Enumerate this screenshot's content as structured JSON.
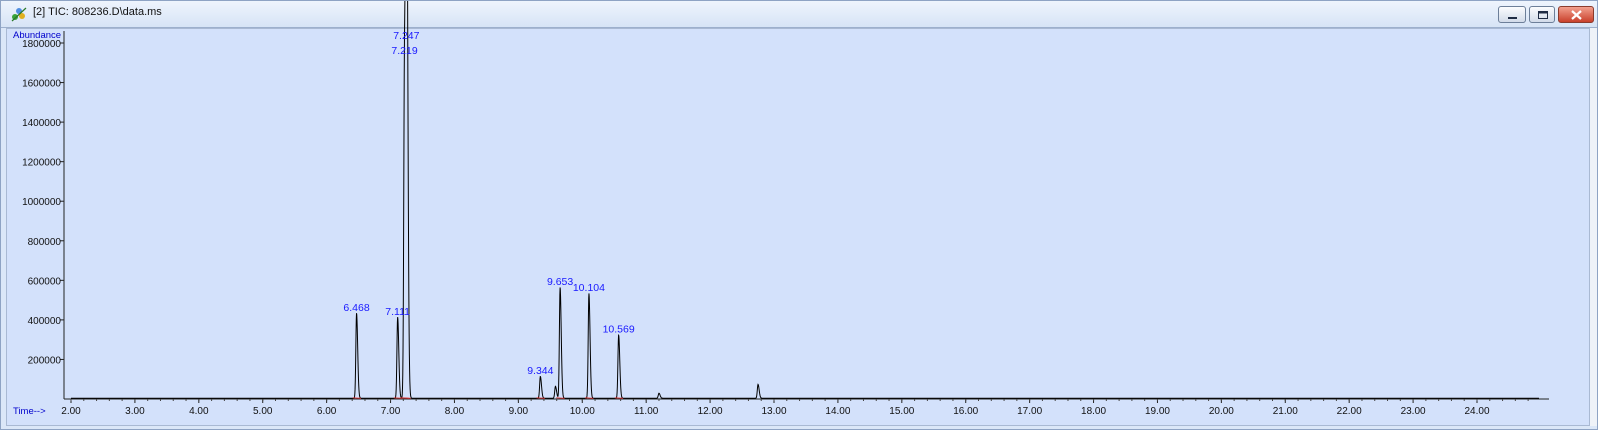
{
  "window": {
    "title": "[2] TIC: 808236.D\\data.ms"
  },
  "chart_data": {
    "type": "line",
    "title": "[2] TIC: 808236.D\\data.ms",
    "xlabel": "Time-->",
    "ylabel": "Abundance",
    "xlim": [
      1.95,
      25.0
    ],
    "ylim": [
      0,
      1840000
    ],
    "x_ticks": [
      "2.00",
      "3.00",
      "4.00",
      "5.00",
      "6.00",
      "7.00",
      "8.00",
      "9.00",
      "10.00",
      "11.00",
      "12.00",
      "13.00",
      "14.00",
      "15.00",
      "16.00",
      "17.00",
      "18.00",
      "19.00",
      "20.00",
      "21.00",
      "22.00",
      "23.00",
      "24.00"
    ],
    "y_ticks": [
      "200000",
      "400000",
      "600000",
      "800000",
      "1000000",
      "1200000",
      "1400000",
      "1600000",
      "1800000"
    ],
    "grid": false,
    "series": [
      {
        "peaks": [
          {
            "rt": 6.468,
            "height": 430000,
            "label": "6.468"
          },
          {
            "rt": 7.111,
            "height": 410000,
            "label": "7.111"
          },
          {
            "rt": 7.219,
            "height": 1730000,
            "label": "7.219"
          },
          {
            "rt": 7.247,
            "height": 1760000,
            "label": "7.247"
          },
          {
            "rt": 7.255,
            "height": 1140000,
            "label": ""
          },
          {
            "rt": 9.344,
            "height": 110000,
            "label": "9.344"
          },
          {
            "rt": 9.58,
            "height": 60000,
            "label": ""
          },
          {
            "rt": 9.653,
            "height": 560000,
            "label": "9.653"
          },
          {
            "rt": 10.104,
            "height": 530000,
            "label": "10.104"
          },
          {
            "rt": 10.569,
            "height": 320000,
            "label": "10.569"
          },
          {
            "rt": 11.2,
            "height": 25000,
            "label": ""
          },
          {
            "rt": 12.75,
            "height": 70000,
            "label": ""
          }
        ]
      }
    ]
  }
}
